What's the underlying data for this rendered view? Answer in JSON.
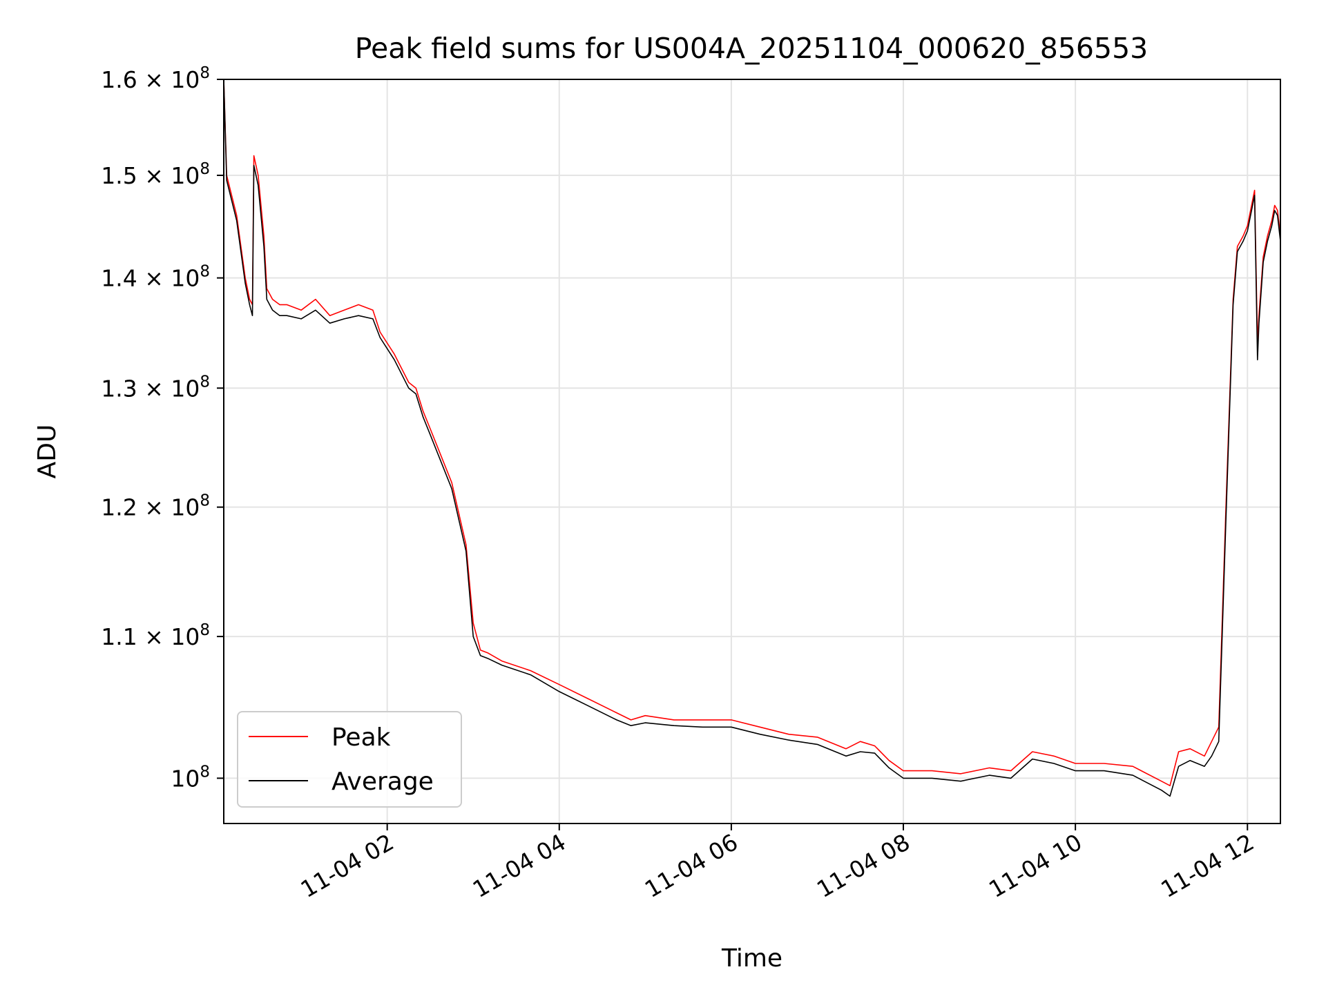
{
  "chart_data": {
    "type": "line",
    "title": "Peak field sums for US004A_20251104_000620_856553",
    "xlabel": "Time",
    "ylabel": "ADU",
    "x_axis": {
      "kind": "datetime",
      "range": [
        "2025-11-04 00:06",
        "2025-11-04 12:23"
      ],
      "ticks": [
        {
          "value": "2025-11-04 02:00",
          "label": "11-04 02"
        },
        {
          "value": "2025-11-04 04:00",
          "label": "11-04 04"
        },
        {
          "value": "2025-11-04 06:00",
          "label": "11-04 06"
        },
        {
          "value": "2025-11-04 08:00",
          "label": "11-04 08"
        },
        {
          "value": "2025-11-04 10:00",
          "label": "11-04 10"
        },
        {
          "value": "2025-11-04 12:00",
          "label": "11-04 12"
        }
      ]
    },
    "y_axis": {
      "scale": "log",
      "range": [
        97000000,
        160000000
      ],
      "ticks": [
        {
          "value": 100000000,
          "label": "10",
          "exp": "8"
        },
        {
          "value": 110000000,
          "label": "1.1 × 10",
          "exp": "8"
        },
        {
          "value": 120000000,
          "label": "1.2 × 10",
          "exp": "8"
        },
        {
          "value": 130000000,
          "label": "1.3 × 10",
          "exp": "8"
        },
        {
          "value": 140000000,
          "label": "1.4 × 10",
          "exp": "8"
        },
        {
          "value": 150000000,
          "label": "1.5 × 10",
          "exp": "8"
        },
        {
          "value": 160000000,
          "label": "1.6 × 10",
          "exp": "8"
        }
      ]
    },
    "grid": true,
    "legend_position": "lower-left",
    "series": [
      {
        "name": "Peak",
        "color": "#ff0000",
        "x": [
          "2025-11-04 00:06",
          "2025-11-04 00:08",
          "2025-11-04 00:15",
          "2025-11-04 00:21",
          "2025-11-04 00:24",
          "2025-11-04 00:26",
          "2025-11-04 00:27",
          "2025-11-04 00:30",
          "2025-11-04 00:34",
          "2025-11-04 00:36",
          "2025-11-04 00:40",
          "2025-11-04 00:45",
          "2025-11-04 00:50",
          "2025-11-04 01:00",
          "2025-11-04 01:10",
          "2025-11-04 01:20",
          "2025-11-04 01:30",
          "2025-11-04 01:40",
          "2025-11-04 01:50",
          "2025-11-04 01:55",
          "2025-11-04 02:05",
          "2025-11-04 02:15",
          "2025-11-04 02:20",
          "2025-11-04 02:25",
          "2025-11-04 02:30",
          "2025-11-04 02:45",
          "2025-11-04 02:55",
          "2025-11-04 03:00",
          "2025-11-04 03:05",
          "2025-11-04 03:10",
          "2025-11-04 03:20",
          "2025-11-04 03:40",
          "2025-11-04 04:00",
          "2025-11-04 04:20",
          "2025-11-04 04:40",
          "2025-11-04 04:50",
          "2025-11-04 05:00",
          "2025-11-04 05:20",
          "2025-11-04 05:40",
          "2025-11-04 06:00",
          "2025-11-04 06:20",
          "2025-11-04 06:40",
          "2025-11-04 07:00",
          "2025-11-04 07:20",
          "2025-11-04 07:30",
          "2025-11-04 07:40",
          "2025-11-04 07:50",
          "2025-11-04 08:00",
          "2025-11-04 08:20",
          "2025-11-04 08:40",
          "2025-11-04 09:00",
          "2025-11-04 09:15",
          "2025-11-04 09:30",
          "2025-11-04 09:45",
          "2025-11-04 10:00",
          "2025-11-04 10:20",
          "2025-11-04 10:40",
          "2025-11-04 11:00",
          "2025-11-04 11:06",
          "2025-11-04 11:12",
          "2025-11-04 11:20",
          "2025-11-04 11:30",
          "2025-11-04 11:35",
          "2025-11-04 11:40",
          "2025-11-04 11:45",
          "2025-11-04 11:50",
          "2025-11-04 11:53",
          "2025-11-04 11:57",
          "2025-11-04 12:00",
          "2025-11-04 12:05",
          "2025-11-04 12:07",
          "2025-11-04 12:08",
          "2025-11-04 12:11",
          "2025-11-04 12:14",
          "2025-11-04 12:17",
          "2025-11-04 12:19",
          "2025-11-04 12:21",
          "2025-11-04 12:23"
        ],
        "y": [
          160000000,
          150000000,
          146000000,
          140000000,
          138000000,
          137500000,
          152000000,
          150000000,
          144000000,
          139000000,
          138000000,
          137500000,
          137500000,
          137000000,
          138000000,
          136500000,
          137000000,
          137500000,
          137000000,
          135000000,
          133000000,
          130500000,
          130000000,
          128000000,
          126500000,
          122000000,
          117000000,
          111000000,
          109000000,
          108800000,
          108200000,
          107500000,
          106500000,
          105500000,
          104500000,
          104000000,
          104300000,
          104000000,
          104000000,
          104000000,
          103500000,
          103000000,
          102800000,
          102000000,
          102500000,
          102200000,
          101200000,
          100500000,
          100500000,
          100300000,
          100700000,
          100500000,
          101800000,
          101500000,
          101000000,
          101000000,
          100800000,
          99800000,
          99500000,
          101800000,
          102000000,
          101500000,
          102500000,
          103500000,
          120000000,
          138000000,
          143000000,
          144000000,
          145000000,
          148500000,
          134000000,
          136500000,
          142000000,
          144000000,
          145500000,
          147000000,
          146500000,
          144000000
        ]
      },
      {
        "name": "Average",
        "color": "#000000",
        "x": [
          "2025-11-04 00:06",
          "2025-11-04 00:08",
          "2025-11-04 00:15",
          "2025-11-04 00:21",
          "2025-11-04 00:24",
          "2025-11-04 00:26",
          "2025-11-04 00:27",
          "2025-11-04 00:30",
          "2025-11-04 00:34",
          "2025-11-04 00:36",
          "2025-11-04 00:40",
          "2025-11-04 00:45",
          "2025-11-04 00:50",
          "2025-11-04 01:00",
          "2025-11-04 01:10",
          "2025-11-04 01:20",
          "2025-11-04 01:30",
          "2025-11-04 01:40",
          "2025-11-04 01:50",
          "2025-11-04 01:55",
          "2025-11-04 02:05",
          "2025-11-04 02:15",
          "2025-11-04 02:20",
          "2025-11-04 02:25",
          "2025-11-04 02:30",
          "2025-11-04 02:45",
          "2025-11-04 02:55",
          "2025-11-04 03:00",
          "2025-11-04 03:05",
          "2025-11-04 03:10",
          "2025-11-04 03:20",
          "2025-11-04 03:40",
          "2025-11-04 04:00",
          "2025-11-04 04:20",
          "2025-11-04 04:40",
          "2025-11-04 04:50",
          "2025-11-04 05:00",
          "2025-11-04 05:20",
          "2025-11-04 05:40",
          "2025-11-04 06:00",
          "2025-11-04 06:20",
          "2025-11-04 06:40",
          "2025-11-04 07:00",
          "2025-11-04 07:20",
          "2025-11-04 07:30",
          "2025-11-04 07:40",
          "2025-11-04 07:50",
          "2025-11-04 08:00",
          "2025-11-04 08:20",
          "2025-11-04 08:40",
          "2025-11-04 09:00",
          "2025-11-04 09:15",
          "2025-11-04 09:30",
          "2025-11-04 09:45",
          "2025-11-04 10:00",
          "2025-11-04 10:20",
          "2025-11-04 10:40",
          "2025-11-04 11:00",
          "2025-11-04 11:06",
          "2025-11-04 11:12",
          "2025-11-04 11:20",
          "2025-11-04 11:30",
          "2025-11-04 11:35",
          "2025-11-04 11:40",
          "2025-11-04 11:45",
          "2025-11-04 11:50",
          "2025-11-04 11:53",
          "2025-11-04 11:57",
          "2025-11-04 12:00",
          "2025-11-04 12:05",
          "2025-11-04 12:07",
          "2025-11-04 12:08",
          "2025-11-04 12:11",
          "2025-11-04 12:14",
          "2025-11-04 12:17",
          "2025-11-04 12:19",
          "2025-11-04 12:21",
          "2025-11-04 12:23"
        ],
        "y": [
          160000000,
          149500000,
          145500000,
          139500000,
          137500000,
          136500000,
          151000000,
          149000000,
          143000000,
          138000000,
          137000000,
          136500000,
          136500000,
          136200000,
          137000000,
          135800000,
          136200000,
          136500000,
          136200000,
          134500000,
          132500000,
          130000000,
          129500000,
          127500000,
          126000000,
          121500000,
          116500000,
          110000000,
          108600000,
          108400000,
          107900000,
          107200000,
          106000000,
          105000000,
          104000000,
          103600000,
          103800000,
          103600000,
          103500000,
          103500000,
          103000000,
          102600000,
          102300000,
          101500000,
          101800000,
          101700000,
          100700000,
          100000000,
          100000000,
          99800000,
          100200000,
          100000000,
          101300000,
          101000000,
          100500000,
          100500000,
          100200000,
          99200000,
          98800000,
          100800000,
          101200000,
          100800000,
          101500000,
          102500000,
          119000000,
          137500000,
          142500000,
          143500000,
          144500000,
          148000000,
          132500000,
          135800000,
          141500000,
          143500000,
          145000000,
          146500000,
          146000000,
          143500000
        ]
      }
    ]
  }
}
